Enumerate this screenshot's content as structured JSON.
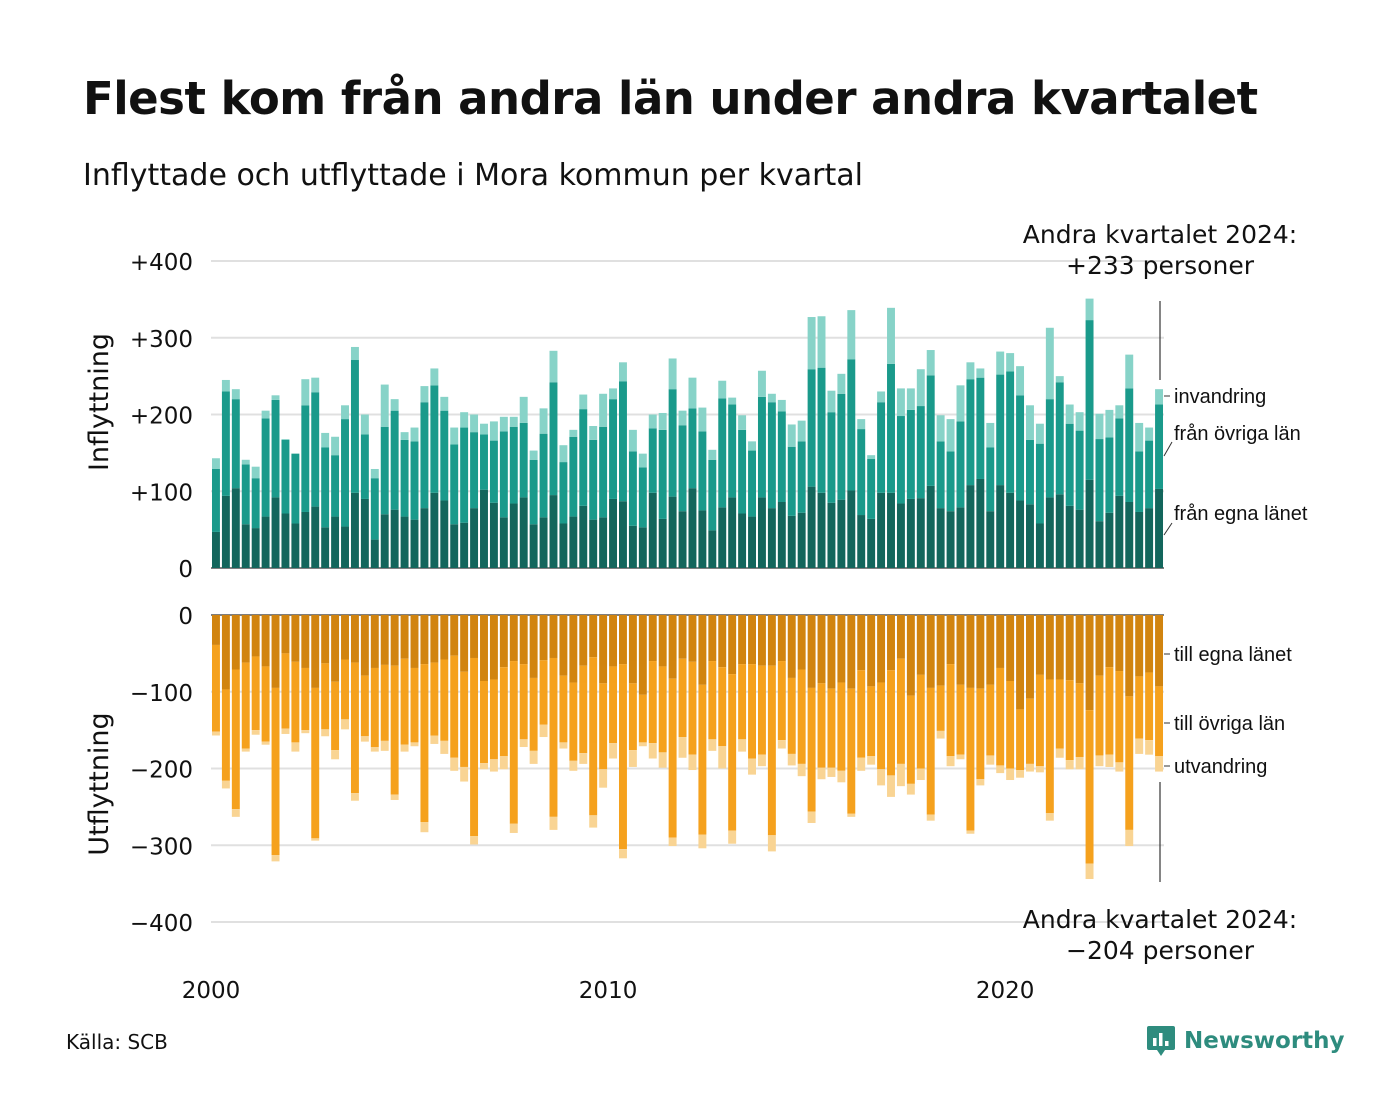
{
  "header": {
    "title": "Flest kom från andra län under andra kvartalet",
    "subtitle": "Inflyttade och utflyttade i Mora kommun per kvartal"
  },
  "footer": {
    "source": "Källa: SCB",
    "brand": "Newsworthy"
  },
  "annotations": {
    "top_line1": "Andra kvartalet 2024:",
    "top_line2": "+233 personer",
    "bottom_line1": "Andra kvartalet 2024:",
    "bottom_line2": "−204 personer"
  },
  "colors": {
    "in_egna": "#13665c",
    "in_ovriga": "#1a9a8b",
    "in_invandring": "#87d3c8",
    "ut_egna": "#d1840f",
    "ut_ovriga": "#f5a11d",
    "ut_utvandring": "#f9d493",
    "grid": "#e0e0e0",
    "brand": "#2e8c7e"
  },
  "chart_data": [
    {
      "type": "bar",
      "stacked": true,
      "panel": "top",
      "ylabel": "Inflyttning",
      "ylim": [
        0,
        400
      ],
      "yticks": [
        0,
        100,
        200,
        300,
        400
      ],
      "ytick_labels": [
        "0",
        "+100",
        "+200",
        "+300",
        "+400"
      ],
      "x_start": "2000 Q1",
      "x_ticks": [
        2000,
        2010,
        2020
      ],
      "x_tick_labels": [
        "2000",
        "2010",
        "2020"
      ],
      "grid": true,
      "series": [
        {
          "name": "från egna länet",
          "values": [
            47,
            94,
            104,
            57,
            52,
            67,
            92,
            71,
            58,
            73,
            80,
            53,
            67,
            54,
            98,
            90,
            37,
            70,
            76,
            67,
            63,
            78,
            98,
            88,
            57,
            59,
            78,
            102,
            85,
            66,
            84,
            92,
            57,
            66,
            95,
            58,
            67,
            81,
            63,
            66,
            90,
            87,
            55,
            53,
            98,
            64,
            93,
            74,
            104,
            75,
            49,
            79,
            92,
            71,
            67,
            92,
            78,
            86,
            68,
            72,
            106,
            98,
            85,
            89,
            101,
            69,
            64,
            98,
            98,
            84,
            90,
            91,
            107,
            78,
            74,
            79,
            108,
            116,
            74,
            108,
            98,
            88,
            83,
            58,
            92,
            96,
            81,
            76,
            115,
            61,
            72,
            94,
            86,
            73,
            78,
            103
          ]
        },
        {
          "name": "från övriga län",
          "values": [
            82,
            136,
            116,
            78,
            65,
            128,
            127,
            96,
            91,
            139,
            149,
            104,
            80,
            140,
            173,
            84,
            80,
            114,
            129,
            100,
            102,
            138,
            140,
            117,
            104,
            124,
            99,
            72,
            81,
            112,
            100,
            97,
            84,
            109,
            147,
            80,
            104,
            126,
            104,
            118,
            130,
            156,
            97,
            78,
            84,
            116,
            140,
            112,
            104,
            103,
            92,
            142,
            121,
            109,
            86,
            131,
            138,
            118,
            90,
            93,
            153,
            163,
            118,
            138,
            171,
            112,
            78,
            118,
            168,
            114,
            116,
            120,
            144,
            87,
            78,
            112,
            138,
            132,
            83,
            144,
            158,
            137,
            84,
            104,
            128,
            146,
            107,
            103,
            208,
            107,
            98,
            101,
            148,
            79,
            88,
            110
          ]
        },
        {
          "name": "invandring",
          "values": [
            14,
            15,
            13,
            6,
            15,
            10,
            6,
            1,
            0,
            34,
            19,
            19,
            24,
            18,
            17,
            26,
            12,
            55,
            15,
            10,
            18,
            21,
            22,
            18,
            22,
            20,
            23,
            14,
            25,
            19,
            13,
            34,
            12,
            33,
            41,
            22,
            9,
            19,
            18,
            43,
            14,
            25,
            28,
            18,
            18,
            22,
            40,
            19,
            40,
            31,
            13,
            23,
            9,
            19,
            12,
            34,
            11,
            15,
            29,
            27,
            68,
            67,
            28,
            26,
            64,
            13,
            5,
            14,
            73,
            36,
            28,
            48,
            33,
            34,
            42,
            47,
            22,
            12,
            32,
            30,
            24,
            38,
            45,
            26,
            93,
            8,
            25,
            24,
            28,
            33,
            36,
            17,
            44,
            37,
            17,
            20
          ]
        }
      ]
    },
    {
      "type": "bar",
      "stacked": true,
      "panel": "bottom",
      "ylabel": "Utflyttning",
      "ylim": [
        -400,
        0
      ],
      "yticks": [
        0,
        -100,
        -200,
        -300,
        -400
      ],
      "ytick_labels": [
        "0",
        "−100",
        "−200",
        "−300",
        "−400"
      ],
      "x_start": "2000 Q1",
      "grid": true,
      "series": [
        {
          "name": "till egna länet",
          "values": [
            -39,
            -97,
            -71,
            -62,
            -54,
            -67,
            -95,
            -50,
            -61,
            -69,
            -95,
            -63,
            -87,
            -58,
            -62,
            -79,
            -69,
            -65,
            -66,
            -57,
            -69,
            -64,
            -62,
            -58,
            -53,
            -74,
            -56,
            -86,
            -84,
            -68,
            -60,
            -64,
            -82,
            -59,
            -56,
            -79,
            -88,
            -66,
            -55,
            -89,
            -67,
            -64,
            -89,
            -104,
            -60,
            -67,
            -83,
            -57,
            -61,
            -91,
            -60,
            -68,
            -77,
            -64,
            -64,
            -66,
            -66,
            -60,
            -82,
            -71,
            -95,
            -89,
            -96,
            -88,
            -96,
            -72,
            -93,
            -88,
            -72,
            -57,
            -105,
            -78,
            -95,
            -92,
            -64,
            -91,
            -95,
            -96,
            -91,
            -69,
            -86,
            -123,
            -109,
            -78,
            -84,
            -84,
            -85,
            -89,
            -124,
            -79,
            -68,
            -73,
            -106,
            -80,
            -75,
            -93
          ]
        },
        {
          "name": "till övriga län",
          "values": [
            -113,
            -119,
            -182,
            -112,
            -96,
            -98,
            -218,
            -98,
            -105,
            -81,
            -196,
            -86,
            -89,
            -78,
            -170,
            -79,
            -103,
            -99,
            -168,
            -112,
            -97,
            -206,
            -95,
            -106,
            -133,
            -124,
            -232,
            -107,
            -104,
            -116,
            -212,
            -98,
            -95,
            -84,
            -207,
            -87,
            -102,
            -114,
            -206,
            -112,
            -100,
            -241,
            -87,
            -62,
            -107,
            -112,
            -207,
            -102,
            -121,
            -195,
            -102,
            -103,
            -204,
            -98,
            -123,
            -116,
            -221,
            -103,
            -99,
            -123,
            -161,
            -110,
            -103,
            -115,
            -163,
            -114,
            -91,
            -113,
            -137,
            -137,
            -115,
            -122,
            -165,
            -59,
            -120,
            -91,
            -186,
            -118,
            -92,
            -127,
            -114,
            -79,
            -85,
            -119,
            -174,
            -90,
            -104,
            -96,
            -200,
            -104,
            -114,
            -119,
            -174,
            -81,
            -88,
            -91
          ]
        },
        {
          "name": "utvandring",
          "values": [
            -5,
            -10,
            -10,
            -4,
            -6,
            -4,
            -8,
            -7,
            -12,
            -4,
            -3,
            -9,
            -12,
            -13,
            -10,
            -7,
            -6,
            -13,
            -7,
            -9,
            -5,
            -13,
            -11,
            -17,
            -17,
            -19,
            -11,
            -8,
            -16,
            -17,
            -12,
            -10,
            -17,
            -16,
            -17,
            -8,
            -13,
            -14,
            -16,
            -24,
            -20,
            -12,
            -22,
            -5,
            -20,
            -20,
            -11,
            -27,
            -20,
            -18,
            -15,
            -29,
            -17,
            -16,
            -21,
            -15,
            -21,
            -11,
            -15,
            -16,
            -15,
            -15,
            -12,
            -15,
            -4,
            -17,
            -11,
            -21,
            -28,
            -29,
            -14,
            -15,
            -8,
            -10,
            -13,
            -6,
            -4,
            -8,
            -12,
            -10,
            -15,
            -10,
            -10,
            -8,
            -10,
            -12,
            -12,
            -16,
            -20,
            -14,
            -16,
            -12,
            -21,
            -20,
            -19,
            -20
          ]
        }
      ]
    }
  ]
}
